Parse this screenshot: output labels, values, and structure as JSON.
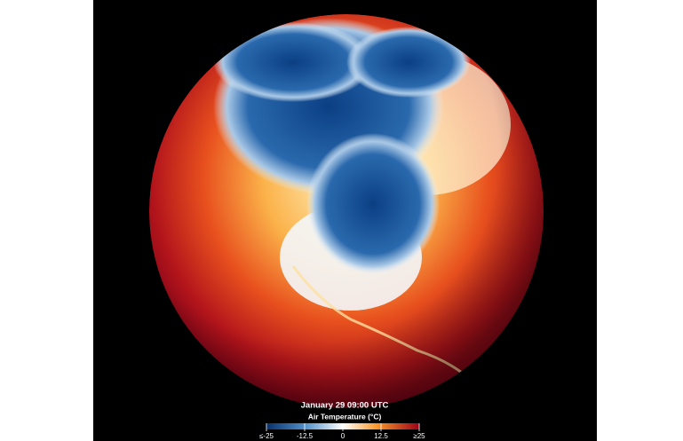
{
  "map": {
    "timestamp": "January 29 09:00 UTC",
    "legend": {
      "title": "Air Temperature (°C)",
      "range": [
        -25,
        25
      ],
      "ticks": [
        {
          "value": -25,
          "label": "≤-25"
        },
        -12.5,
        0,
        12.5,
        {
          "value": 25,
          "label": "≥25"
        }
      ]
    }
  }
}
